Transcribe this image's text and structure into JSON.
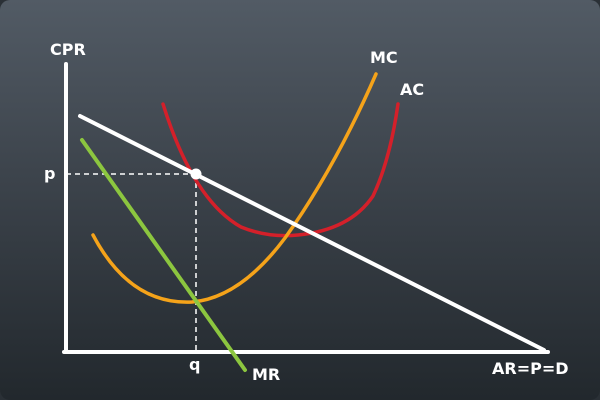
{
  "diagram": {
    "axes": {
      "y_label": "CPR"
    },
    "curves": {
      "mc": {
        "label": "MC",
        "color": "#f5a31a"
      },
      "ac": {
        "label": "AC",
        "color": "#d4202a"
      },
      "mr": {
        "label": "MR",
        "color": "#8cc63f"
      },
      "demand": {
        "label": "AR=P=D",
        "color": "#ffffff"
      }
    },
    "equilibrium": {
      "price_label": "p",
      "quantity_label": "q"
    }
  }
}
